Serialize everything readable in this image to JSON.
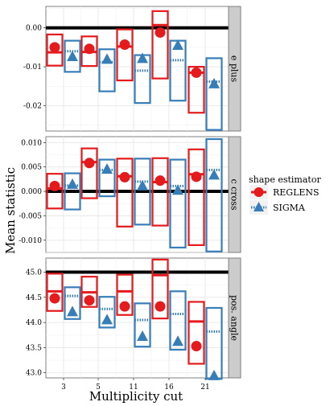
{
  "chart_data": {
    "type": "faceted-errorbar",
    "xlabel": "Multiplicity cut",
    "ylabel": "Mean statistic",
    "categories": [
      "3",
      "5",
      "11",
      "16",
      "21"
    ],
    "legend": {
      "title": "shape estimator",
      "placement": "right",
      "entries": [
        "REGLENS",
        "SIGMA"
      ]
    },
    "colors": {
      "REGLENS": "#e41a1c",
      "SIGMA": "#377eb8",
      "reference": "#000000"
    },
    "panels": [
      {
        "name": "e plus",
        "reference_line": 0.0,
        "ylim": [
          -0.0265,
          0.0055
        ],
        "yticks": [
          0.0,
          -0.01,
          -0.02
        ],
        "ytick_labels": [
          "0.00",
          "-0.01",
          "-0.02"
        ],
        "series": [
          {
            "name": "REGLENS",
            "mean": [
              -0.005,
              -0.0054,
              -0.0043,
              -0.0012,
              -0.0115
            ],
            "box_low": [
              -0.0097,
              -0.0098,
              -0.0135,
              -0.013,
              -0.0218
            ],
            "box_high": [
              -0.0017,
              -0.0022,
              -0.0004,
              0.0043,
              -0.01
            ],
            "median": [
              -0.0063,
              -0.0062,
              -0.0048,
              0.0007,
              -0.0115
            ]
          },
          {
            "name": "SIGMA",
            "mean": [
              -0.0073,
              -0.008,
              -0.0078,
              -0.0044,
              -0.0143
            ],
            "box_low": [
              -0.0113,
              -0.0163,
              -0.0193,
              -0.0187,
              -0.0262
            ],
            "box_high": [
              -0.0033,
              -0.0055,
              -0.007,
              -0.0033,
              -0.0078
            ],
            "median": [
              -0.006,
              -0.0088,
              -0.011,
              -0.0083,
              -0.0138
            ]
          }
        ]
      },
      {
        "name": "c cross",
        "reference_line": 0.0,
        "ylim": [
          -0.0125,
          0.0112
        ],
        "yticks": [
          0.01,
          0.005,
          0.0,
          -0.005,
          -0.01
        ],
        "ytick_labels": [
          "0.010",
          "0.005",
          "0.000",
          "-0.005",
          "-0.010"
        ],
        "series": [
          {
            "name": "REGLENS",
            "mean": [
              0.0011,
              0.0058,
              0.0029,
              0.0022,
              0.003
            ],
            "box_low": [
              -0.0035,
              -0.0014,
              -0.0072,
              -0.007,
              -0.011
            ],
            "box_high": [
              0.0036,
              0.0088,
              0.0067,
              0.0068,
              0.0086
            ],
            "median": [
              0.0006,
              0.006,
              0.0031,
              0.0019,
              0.0035
            ]
          },
          {
            "name": "SIGMA",
            "mean": [
              0.0015,
              0.0046,
              0.0012,
              0.0003,
              0.0034
            ],
            "box_low": [
              -0.0037,
              -0.001,
              -0.0068,
              -0.0115,
              -0.0123
            ],
            "box_high": [
              0.0037,
              0.0065,
              0.0067,
              0.0065,
              0.0107
            ],
            "median": [
              0.0012,
              0.0044,
              0.002,
              0.0011,
              0.0044
            ]
          }
        ]
      },
      {
        "name": "pos. angle",
        "reference_line": 45.0,
        "ylim": [
          42.9,
          45.28
        ],
        "yticks": [
          45.0,
          44.5,
          44.0,
          43.5,
          43.0
        ],
        "ytick_labels": [
          "45.0",
          "44.5",
          "44.0",
          "43.5",
          "43.0"
        ],
        "series": [
          {
            "name": "REGLENS",
            "mean": [
              44.48,
              44.44,
              44.32,
              44.32,
              43.53
            ],
            "box_low": [
              44.23,
              44.31,
              44.15,
              44.08,
              43.18
            ],
            "box_high": [
              44.97,
              44.91,
              44.95,
              45.25,
              44.41
            ],
            "median": [
              44.62,
              44.6,
              44.62,
              44.94,
              44.02
            ]
          },
          {
            "name": "SIGMA",
            "mean": [
              44.22,
              44.06,
              43.73,
              43.63,
              42.95
            ],
            "box_low": [
              44.07,
              43.9,
              43.52,
              43.46,
              42.88
            ],
            "box_high": [
              44.7,
              44.51,
              44.38,
              44.62,
              44.29
            ],
            "median": [
              44.53,
              44.27,
              44.05,
              44.17,
              43.82
            ]
          }
        ]
      }
    ]
  }
}
